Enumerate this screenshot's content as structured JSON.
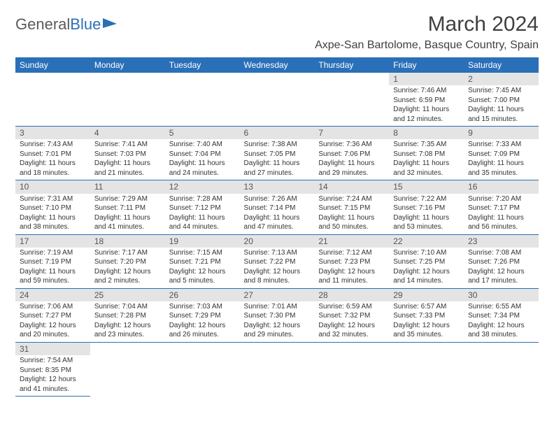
{
  "logo": {
    "part1": "General",
    "part2": "Blue"
  },
  "title": "March 2024",
  "location": "Axpe-San Bartolome, Basque Country, Spain",
  "colors": {
    "header_bg": "#2a70b8",
    "header_fg": "#ffffff",
    "daynum_bg": "#e4e4e4",
    "rule": "#2a70b8",
    "text": "#333333"
  },
  "dayNames": [
    "Sunday",
    "Monday",
    "Tuesday",
    "Wednesday",
    "Thursday",
    "Friday",
    "Saturday"
  ],
  "weeks": [
    [
      null,
      null,
      null,
      null,
      null,
      {
        "n": "1",
        "sr": "7:46 AM",
        "ss": "6:59 PM",
        "dl": "11 hours and 12 minutes."
      },
      {
        "n": "2",
        "sr": "7:45 AM",
        "ss": "7:00 PM",
        "dl": "11 hours and 15 minutes."
      }
    ],
    [
      {
        "n": "3",
        "sr": "7:43 AM",
        "ss": "7:01 PM",
        "dl": "11 hours and 18 minutes."
      },
      {
        "n": "4",
        "sr": "7:41 AM",
        "ss": "7:03 PM",
        "dl": "11 hours and 21 minutes."
      },
      {
        "n": "5",
        "sr": "7:40 AM",
        "ss": "7:04 PM",
        "dl": "11 hours and 24 minutes."
      },
      {
        "n": "6",
        "sr": "7:38 AM",
        "ss": "7:05 PM",
        "dl": "11 hours and 27 minutes."
      },
      {
        "n": "7",
        "sr": "7:36 AM",
        "ss": "7:06 PM",
        "dl": "11 hours and 29 minutes."
      },
      {
        "n": "8",
        "sr": "7:35 AM",
        "ss": "7:08 PM",
        "dl": "11 hours and 32 minutes."
      },
      {
        "n": "9",
        "sr": "7:33 AM",
        "ss": "7:09 PM",
        "dl": "11 hours and 35 minutes."
      }
    ],
    [
      {
        "n": "10",
        "sr": "7:31 AM",
        "ss": "7:10 PM",
        "dl": "11 hours and 38 minutes."
      },
      {
        "n": "11",
        "sr": "7:29 AM",
        "ss": "7:11 PM",
        "dl": "11 hours and 41 minutes."
      },
      {
        "n": "12",
        "sr": "7:28 AM",
        "ss": "7:12 PM",
        "dl": "11 hours and 44 minutes."
      },
      {
        "n": "13",
        "sr": "7:26 AM",
        "ss": "7:14 PM",
        "dl": "11 hours and 47 minutes."
      },
      {
        "n": "14",
        "sr": "7:24 AM",
        "ss": "7:15 PM",
        "dl": "11 hours and 50 minutes."
      },
      {
        "n": "15",
        "sr": "7:22 AM",
        "ss": "7:16 PM",
        "dl": "11 hours and 53 minutes."
      },
      {
        "n": "16",
        "sr": "7:20 AM",
        "ss": "7:17 PM",
        "dl": "11 hours and 56 minutes."
      }
    ],
    [
      {
        "n": "17",
        "sr": "7:19 AM",
        "ss": "7:19 PM",
        "dl": "11 hours and 59 minutes."
      },
      {
        "n": "18",
        "sr": "7:17 AM",
        "ss": "7:20 PM",
        "dl": "12 hours and 2 minutes."
      },
      {
        "n": "19",
        "sr": "7:15 AM",
        "ss": "7:21 PM",
        "dl": "12 hours and 5 minutes."
      },
      {
        "n": "20",
        "sr": "7:13 AM",
        "ss": "7:22 PM",
        "dl": "12 hours and 8 minutes."
      },
      {
        "n": "21",
        "sr": "7:12 AM",
        "ss": "7:23 PM",
        "dl": "12 hours and 11 minutes."
      },
      {
        "n": "22",
        "sr": "7:10 AM",
        "ss": "7:25 PM",
        "dl": "12 hours and 14 minutes."
      },
      {
        "n": "23",
        "sr": "7:08 AM",
        "ss": "7:26 PM",
        "dl": "12 hours and 17 minutes."
      }
    ],
    [
      {
        "n": "24",
        "sr": "7:06 AM",
        "ss": "7:27 PM",
        "dl": "12 hours and 20 minutes."
      },
      {
        "n": "25",
        "sr": "7:04 AM",
        "ss": "7:28 PM",
        "dl": "12 hours and 23 minutes."
      },
      {
        "n": "26",
        "sr": "7:03 AM",
        "ss": "7:29 PM",
        "dl": "12 hours and 26 minutes."
      },
      {
        "n": "27",
        "sr": "7:01 AM",
        "ss": "7:30 PM",
        "dl": "12 hours and 29 minutes."
      },
      {
        "n": "28",
        "sr": "6:59 AM",
        "ss": "7:32 PM",
        "dl": "12 hours and 32 minutes."
      },
      {
        "n": "29",
        "sr": "6:57 AM",
        "ss": "7:33 PM",
        "dl": "12 hours and 35 minutes."
      },
      {
        "n": "30",
        "sr": "6:55 AM",
        "ss": "7:34 PM",
        "dl": "12 hours and 38 minutes."
      }
    ],
    [
      {
        "n": "31",
        "sr": "7:54 AM",
        "ss": "8:35 PM",
        "dl": "12 hours and 41 minutes."
      },
      null,
      null,
      null,
      null,
      null,
      null
    ]
  ],
  "labels": {
    "sunrise": "Sunrise:",
    "sunset": "Sunset:",
    "daylight": "Daylight:"
  }
}
